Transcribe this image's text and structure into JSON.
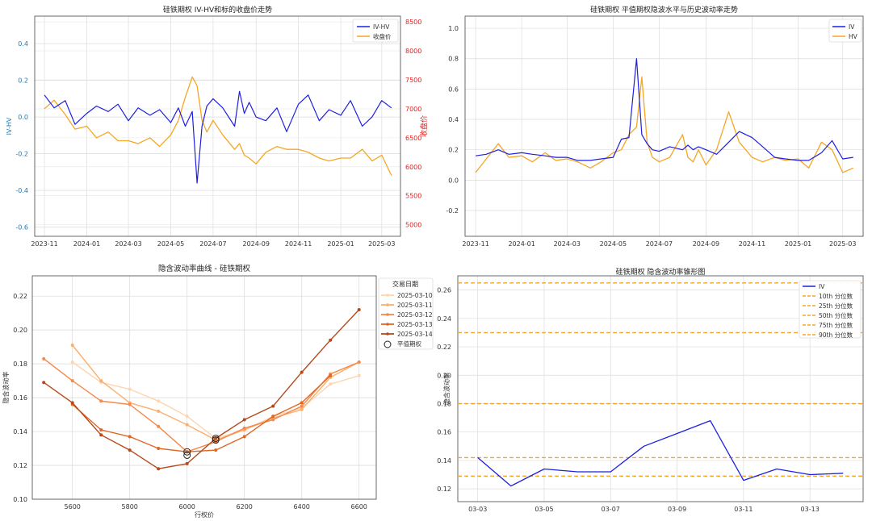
{
  "chart_data": [
    {
      "type": "line",
      "title": "硅铁期权 IV-HV和标的收盘价走势",
      "xlabel": "",
      "ylabel": "IV-HV",
      "y2label": "收盘价",
      "ylim": [
        -0.65,
        0.55
      ],
      "y2lim": [
        4800,
        8600
      ],
      "yticks": [
        "0.4",
        "0.2",
        "0.0",
        "-0.2",
        "-0.4",
        "-0.6"
      ],
      "y2ticks": [
        "8500",
        "8000",
        "7500",
        "7000",
        "6500",
        "6000",
        "5500",
        "5000"
      ],
      "xticks": [
        "2023-11",
        "2024-01",
        "2024-03",
        "2024-05",
        "2024-07",
        "2024-09",
        "2024-11",
        "2025-01",
        "2025-03"
      ],
      "legend": [
        "IV-HV",
        "收盘价"
      ],
      "legend_position": "top-right",
      "grid": true,
      "colors": {
        "iv_hv": "#1f1fdf",
        "close": "#f5a623",
        "right_axis": "#e02020",
        "left_axis": "#1f77b4"
      },
      "series": [
        {
          "name": "IV-HV",
          "axis": "left",
          "x": [
            "2023-11-01",
            "2023-11-15",
            "2023-12-01",
            "2023-12-15",
            "2024-01-01",
            "2024-01-15",
            "2024-02-01",
            "2024-02-15",
            "2024-03-01",
            "2024-03-15",
            "2024-04-01",
            "2024-04-15",
            "2024-05-01",
            "2024-05-12",
            "2024-05-22",
            "2024-06-01",
            "2024-06-08",
            "2024-06-15",
            "2024-06-22",
            "2024-07-01",
            "2024-07-15",
            "2024-08-01",
            "2024-08-08",
            "2024-08-15",
            "2024-08-22",
            "2024-09-01",
            "2024-09-15",
            "2024-10-01",
            "2024-10-15",
            "2024-11-01",
            "2024-11-15",
            "2024-12-01",
            "2024-12-15",
            "2025-01-01",
            "2025-01-15",
            "2025-02-01",
            "2025-02-15",
            "2025-03-01",
            "2025-03-15"
          ],
          "y": [
            0.12,
            0.05,
            0.09,
            -0.04,
            0.02,
            0.06,
            0.03,
            0.07,
            -0.02,
            0.05,
            0.01,
            0.04,
            -0.03,
            0.05,
            -0.05,
            0.03,
            -0.36,
            -0.05,
            0.06,
            0.1,
            0.05,
            -0.05,
            0.14,
            0.02,
            0.08,
            0.0,
            -0.02,
            0.05,
            -0.08,
            0.07,
            0.12,
            -0.02,
            0.04,
            0.01,
            0.09,
            -0.05,
            0.0,
            0.09,
            0.05
          ]
        },
        {
          "name": "收盘价",
          "axis": "right",
          "x": [
            "2023-11-01",
            "2023-11-15",
            "2023-12-01",
            "2023-12-15",
            "2024-01-01",
            "2024-01-15",
            "2024-02-01",
            "2024-02-15",
            "2024-03-01",
            "2024-03-15",
            "2024-04-01",
            "2024-04-15",
            "2024-05-01",
            "2024-05-12",
            "2024-05-22",
            "2024-06-01",
            "2024-06-08",
            "2024-06-15",
            "2024-06-22",
            "2024-07-01",
            "2024-07-15",
            "2024-08-01",
            "2024-08-08",
            "2024-08-15",
            "2024-08-22",
            "2024-09-01",
            "2024-09-15",
            "2024-10-01",
            "2024-10-15",
            "2024-11-01",
            "2024-11-15",
            "2024-12-01",
            "2024-12-15",
            "2025-01-01",
            "2025-01-15",
            "2025-02-01",
            "2025-02-15",
            "2025-03-01",
            "2025-03-15"
          ],
          "y": [
            7000,
            7150,
            6900,
            6650,
            6700,
            6500,
            6600,
            6450,
            6450,
            6400,
            6500,
            6350,
            6550,
            6800,
            7200,
            7550,
            7400,
            6800,
            6600,
            6800,
            6550,
            6300,
            6400,
            6200,
            6150,
            6050,
            6250,
            6350,
            6300,
            6300,
            6250,
            6150,
            6100,
            6150,
            6150,
            6300,
            6100,
            6200,
            5850
          ]
        }
      ]
    },
    {
      "type": "line",
      "title": "硅铁期权 平值期权隐波水平与历史波动率走势",
      "xlabel": "",
      "ylabel": "",
      "ylim": [
        -0.37,
        1.08
      ],
      "yticks": [
        "1.0",
        "0.8",
        "0.6",
        "0.4",
        "0.2",
        "0.0",
        "-0.2"
      ],
      "xticks": [
        "2023-11",
        "2024-01",
        "2024-03",
        "2024-05",
        "2024-07",
        "2024-09",
        "2024-11",
        "2025-01",
        "2025-03"
      ],
      "legend": [
        "IV",
        "HV"
      ],
      "legend_position": "top-right",
      "grid": true,
      "colors": {
        "iv": "#1f1fdf",
        "hv": "#f5a623"
      },
      "series": [
        {
          "name": "IV",
          "x": [
            "2023-11-01",
            "2023-11-15",
            "2023-12-01",
            "2023-12-15",
            "2024-01-01",
            "2024-01-15",
            "2024-02-01",
            "2024-02-15",
            "2024-03-01",
            "2024-03-15",
            "2024-04-01",
            "2024-04-15",
            "2024-05-01",
            "2024-05-12",
            "2024-05-22",
            "2024-06-01",
            "2024-06-08",
            "2024-06-15",
            "2024-06-22",
            "2024-07-01",
            "2024-07-15",
            "2024-08-01",
            "2024-08-08",
            "2024-08-15",
            "2024-08-22",
            "2024-09-01",
            "2024-09-15",
            "2024-10-01",
            "2024-10-15",
            "2024-11-01",
            "2024-11-15",
            "2024-12-01",
            "2024-12-15",
            "2025-01-01",
            "2025-01-15",
            "2025-02-01",
            "2025-02-15",
            "2025-03-01",
            "2025-03-15"
          ],
          "y": [
            0.16,
            0.17,
            0.2,
            0.17,
            0.18,
            0.17,
            0.16,
            0.15,
            0.15,
            0.13,
            0.13,
            0.14,
            0.15,
            0.27,
            0.28,
            0.8,
            0.3,
            0.24,
            0.2,
            0.19,
            0.22,
            0.2,
            0.23,
            0.2,
            0.22,
            0.2,
            0.17,
            0.25,
            0.32,
            0.28,
            0.22,
            0.15,
            0.14,
            0.13,
            0.13,
            0.18,
            0.26,
            0.14,
            0.15
          ]
        },
        {
          "name": "HV",
          "x": [
            "2023-11-01",
            "2023-11-15",
            "2023-12-01",
            "2023-12-15",
            "2024-01-01",
            "2024-01-15",
            "2024-02-01",
            "2024-02-15",
            "2024-03-01",
            "2024-03-15",
            "2024-04-01",
            "2024-04-15",
            "2024-05-01",
            "2024-05-12",
            "2024-05-22",
            "2024-06-01",
            "2024-06-08",
            "2024-06-15",
            "2024-06-22",
            "2024-07-01",
            "2024-07-15",
            "2024-08-01",
            "2024-08-08",
            "2024-08-15",
            "2024-08-22",
            "2024-09-01",
            "2024-09-15",
            "2024-10-01",
            "2024-10-15",
            "2024-11-01",
            "2024-11-15",
            "2024-12-01",
            "2024-12-15",
            "2025-01-01",
            "2025-01-15",
            "2025-02-01",
            "2025-02-15",
            "2025-03-01",
            "2025-03-15"
          ],
          "y": [
            0.05,
            0.14,
            0.24,
            0.15,
            0.16,
            0.12,
            0.18,
            0.13,
            0.14,
            0.12,
            0.08,
            0.12,
            0.18,
            0.2,
            0.3,
            0.35,
            0.68,
            0.25,
            0.15,
            0.12,
            0.15,
            0.3,
            0.15,
            0.12,
            0.2,
            0.1,
            0.2,
            0.45,
            0.25,
            0.15,
            0.12,
            0.15,
            0.13,
            0.14,
            0.08,
            0.25,
            0.2,
            0.05,
            0.08
          ]
        }
      ]
    },
    {
      "type": "line",
      "title": "隐含波动率曲线 - 硅铁期权",
      "xlabel": "行权价",
      "ylabel": "隐含波动率",
      "xlim": [
        5460,
        6660
      ],
      "ylim": [
        0.1,
        0.232
      ],
      "xticks": [
        "5600",
        "5800",
        "6000",
        "6200",
        "6400",
        "6600"
      ],
      "yticks": [
        "0.22",
        "0.20",
        "0.18",
        "0.16",
        "0.14",
        "0.12",
        "0.10"
      ],
      "legend_title": "交易日期",
      "legend": [
        "2025-03-10",
        "2025-03-11",
        "2025-03-12",
        "2025-03-13",
        "2025-03-14",
        "平值期权"
      ],
      "legend_position": "right",
      "grid": true,
      "colors": {
        "2025-03-10": "#fdd5b1",
        "2025-03-11": "#fdae6b",
        "2025-03-12": "#f4894a",
        "2025-03-13": "#de6826",
        "2025-03-14": "#b4491b"
      },
      "series": [
        {
          "name": "2025-03-10",
          "x": [
            5600,
            5700,
            5800,
            5900,
            6000,
            6100,
            6200,
            6300,
            6400,
            6500,
            6600
          ],
          "y": [
            0.181,
            0.169,
            0.165,
            0.158,
            0.149,
            0.136,
            0.141,
            0.149,
            0.154,
            0.168,
            0.173
          ]
        },
        {
          "name": "2025-03-11",
          "x": [
            5600,
            5700,
            5800,
            5900,
            6000,
            6100,
            6200,
            6300,
            6400,
            6500,
            6600
          ],
          "y": [
            0.191,
            0.17,
            0.157,
            0.152,
            0.144,
            0.135,
            0.141,
            0.148,
            0.153,
            0.172,
            0.181
          ]
        },
        {
          "name": "2025-03-12",
          "x": [
            5500,
            5600,
            5700,
            5800,
            5900,
            6000,
            6100,
            6200,
            6300,
            6400,
            6500,
            6600
          ],
          "y": [
            0.183,
            0.17,
            0.158,
            0.156,
            0.143,
            0.128,
            0.134,
            0.142,
            0.147,
            0.155,
            0.174,
            0.181
          ]
        },
        {
          "name": "2025-03-13",
          "x": [
            5600,
            5700,
            5800,
            5900,
            6000,
            6100,
            6200,
            6300,
            6400,
            6500
          ],
          "y": [
            0.156,
            0.141,
            0.137,
            0.13,
            0.128,
            0.129,
            0.137,
            0.149,
            0.157,
            0.173
          ]
        },
        {
          "name": "2025-03-14",
          "x": [
            5500,
            5600,
            5700,
            5800,
            5900,
            6000,
            6100,
            6200,
            6300,
            6400,
            6500,
            6600
          ],
          "y": [
            0.169,
            0.157,
            0.138,
            0.129,
            0.118,
            0.121,
            0.136,
            0.147,
            0.155,
            0.175,
            0.194,
            0.212
          ]
        }
      ],
      "atm_points": [
        {
          "x": 6000,
          "y": 0.128
        },
        {
          "x": 6000,
          "y": 0.126
        },
        {
          "x": 6100,
          "y": 0.136
        },
        {
          "x": 6100,
          "y": 0.135
        }
      ]
    },
    {
      "type": "line",
      "title": "硅铁期权 隐含波动率锥形图",
      "xlabel": "",
      "ylabel": "隐含波动率",
      "ylim": [
        0.111,
        0.27
      ],
      "yticks": [
        "0.26",
        "0.24",
        "0.22",
        "0.20",
        "0.18",
        "0.16",
        "0.14",
        "0.12"
      ],
      "xticks": [
        "03-03",
        "03-05",
        "03-07",
        "03-09",
        "03-11",
        "03-13"
      ],
      "legend": [
        "IV",
        "10th 分位数",
        "25th 分位数",
        "50th 分位数",
        "75th 分位数",
        "90th 分位数"
      ],
      "legend_position": "top-right",
      "grid": true,
      "colors": {
        "iv": "#1f1fdf",
        "percentile": "#f5a623"
      },
      "series": [
        {
          "name": "IV",
          "x": [
            "03-03",
            "03-04",
            "03-05",
            "03-06",
            "03-07",
            "03-08",
            "03-09",
            "03-10",
            "03-11",
            "03-12",
            "03-13",
            "03-14"
          ],
          "y": [
            0.142,
            0.122,
            0.134,
            0.132,
            0.132,
            0.15,
            0.159,
            0.168,
            0.126,
            0.134,
            0.13,
            0.131
          ]
        }
      ],
      "percentiles": [
        {
          "name": "10th 分位数",
          "y": 0.129
        },
        {
          "name": "25th 分位数",
          "y": 0.142
        },
        {
          "name": "50th 分位数",
          "y": 0.18
        },
        {
          "name": "75th 分位数",
          "y": 0.23
        },
        {
          "name": "90th 分位数",
          "y": 0.265
        }
      ]
    }
  ]
}
